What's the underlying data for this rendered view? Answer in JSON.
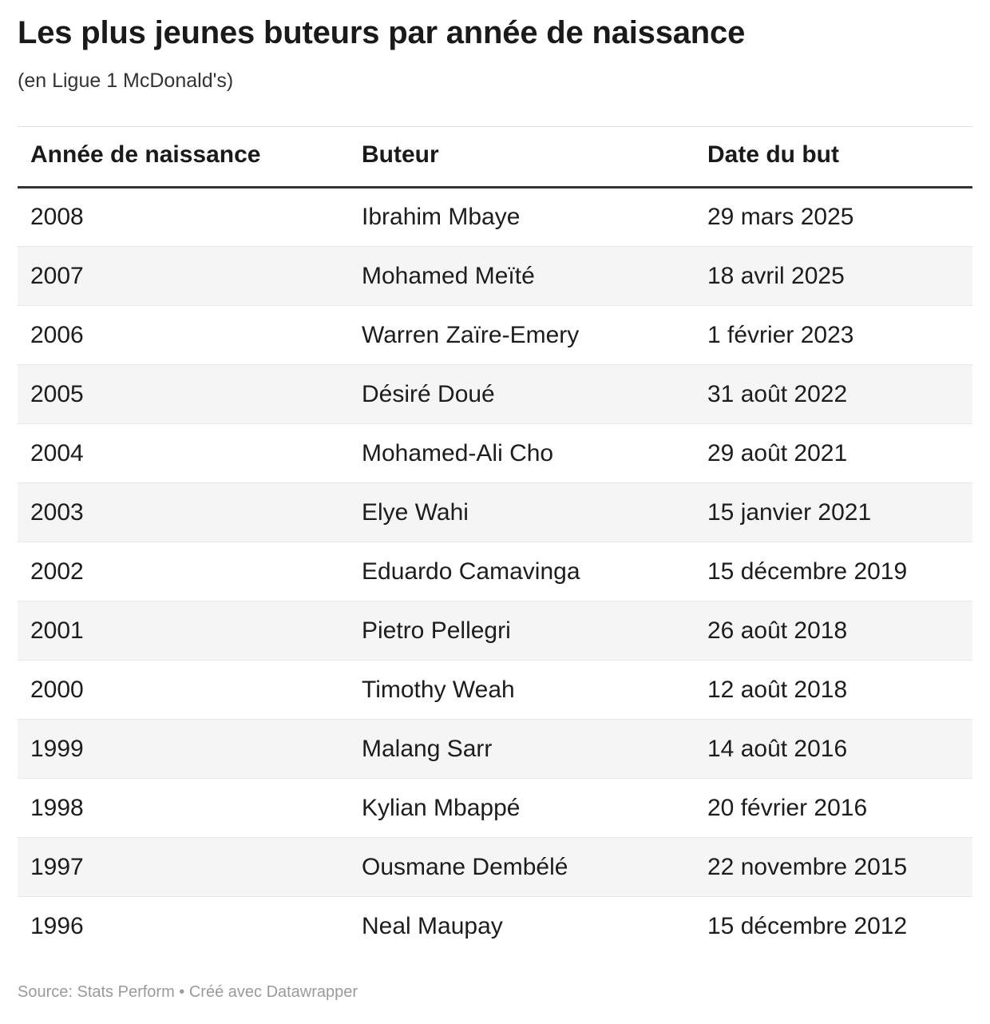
{
  "title": "Les plus jeunes buteurs par année de naissance",
  "subtitle": "(en Ligue 1 McDonald's)",
  "chart_data": {
    "type": "table",
    "title": "Les plus jeunes buteurs par année de naissance",
    "columns": [
      "Année de naissance",
      "Buteur",
      "Date du but"
    ],
    "rows": [
      [
        "2008",
        "Ibrahim Mbaye",
        "29 mars 2025"
      ],
      [
        "2007",
        "Mohamed Meïté",
        "18 avril 2025"
      ],
      [
        "2006",
        "Warren Zaïre-Emery",
        "1 février 2023"
      ],
      [
        "2005",
        "Désiré Doué",
        "31 août 2022"
      ],
      [
        "2004",
        "Mohamed-Ali Cho",
        "29 août 2021"
      ],
      [
        "2003",
        "Elye Wahi",
        "15 janvier 2021"
      ],
      [
        "2002",
        "Eduardo Camavinga",
        "15 décembre 2019"
      ],
      [
        "2001",
        "Pietro Pellegri",
        "26 août 2018"
      ],
      [
        "2000",
        "Timothy Weah",
        "12 août 2018"
      ],
      [
        "1999",
        "Malang Sarr",
        "14 août 2016"
      ],
      [
        "1998",
        "Kylian Mbappé",
        "20 février 2016"
      ],
      [
        "1997",
        "Ousmane Dembélé",
        "22 novembre 2015"
      ],
      [
        "1996",
        "Neal Maupay",
        "15 décembre 2012"
      ]
    ],
    "layout": {
      "striped_rows": true,
      "stripe_on": "even_rows"
    }
  },
  "footer": {
    "text": "Source: Stats Perform • Créé avec Datawrapper"
  },
  "colors": {
    "title_text": "#1a1a1a",
    "subtitle_text": "#333333",
    "cell_text": "#1d1d1d",
    "header_border": "#333333",
    "row_stripe": "#f5f5f5",
    "row_separator": "#e8e8e8",
    "footer_text": "#9a9a9a"
  }
}
